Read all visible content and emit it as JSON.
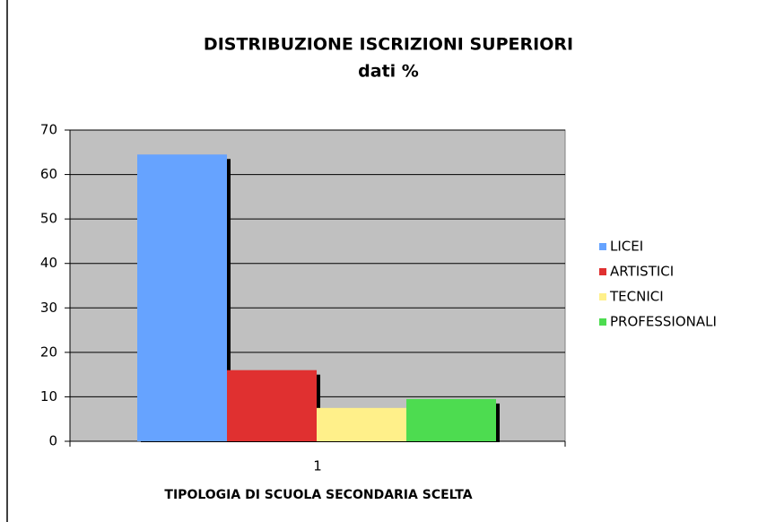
{
  "chart_data": {
    "type": "bar",
    "title": "DISTRIBUZIONE ISCRIZIONI SUPERIORI",
    "subtitle": "dati %",
    "x_label": "TIPOLOGIA DI SCUOLA SECONDARIA SCELTA",
    "categories": [
      "1"
    ],
    "series": [
      {
        "name": "LICEI",
        "color": "#66a3ff",
        "values": [
          64.5
        ]
      },
      {
        "name": "ARTISTICI",
        "color": "#e03030",
        "values": [
          16
        ]
      },
      {
        "name": "TECNICI",
        "color": "#fff08a",
        "values": [
          7.5
        ]
      },
      {
        "name": "PROFESSIONALI",
        "color": "#4ddc50",
        "values": [
          9.5
        ]
      }
    ],
    "ylim": [
      0,
      70
    ],
    "yticks": [
      0,
      10,
      20,
      30,
      40,
      50,
      60,
      70
    ],
    "grid": true,
    "legend": "right"
  }
}
